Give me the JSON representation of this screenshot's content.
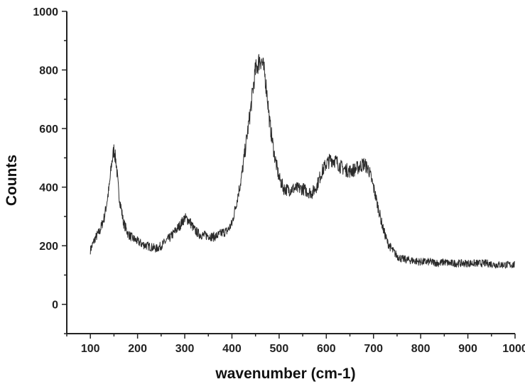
{
  "chart_data": {
    "type": "line",
    "title": "",
    "xlabel": "wavenumber (cm-1)",
    "ylabel": "Counts",
    "xlim": [
      50,
      1000
    ],
    "ylim": [
      -100,
      1000
    ],
    "xticks": [
      100,
      200,
      300,
      400,
      500,
      600,
      700,
      800,
      900,
      1000
    ],
    "yticks": [
      0,
      200,
      400,
      600,
      800,
      1000
    ],
    "grid": false,
    "legend": "none",
    "line_color": "#2a2a2a",
    "series": [
      {
        "x": [
          100,
          110,
          120,
          130,
          140,
          145,
          150,
          155,
          160,
          170,
          180,
          190,
          200,
          210,
          220,
          230,
          240,
          250,
          260,
          270,
          280,
          290,
          300,
          310,
          320,
          330,
          340,
          350,
          360,
          370,
          380,
          390,
          400,
          410,
          420,
          430,
          440,
          445,
          450,
          455,
          460,
          465,
          470,
          475,
          480,
          490,
          500,
          510,
          520,
          530,
          540,
          550,
          560,
          570,
          580,
          590,
          600,
          610,
          620,
          630,
          640,
          650,
          660,
          670,
          680,
          690,
          700,
          710,
          720,
          730,
          740,
          750,
          760,
          780,
          800,
          820,
          840,
          850,
          860,
          880,
          900,
          920,
          940,
          960,
          980,
          1000
        ],
        "y": [
          185,
          225,
          250,
          300,
          400,
          480,
          530,
          480,
          380,
          280,
          240,
          225,
          215,
          205,
          200,
          195,
          190,
          200,
          215,
          230,
          250,
          270,
          295,
          285,
          255,
          240,
          235,
          235,
          230,
          235,
          245,
          250,
          275,
          350,
          430,
          550,
          670,
          740,
          800,
          820,
          840,
          820,
          780,
          710,
          620,
          510,
          430,
          395,
          390,
          395,
          395,
          395,
          385,
          380,
          405,
          450,
          480,
          495,
          490,
          470,
          460,
          455,
          460,
          470,
          480,
          460,
          400,
          330,
          260,
          210,
          185,
          165,
          155,
          150,
          145,
          145,
          140,
          145,
          140,
          140,
          140,
          140,
          140,
          135,
          135,
          135
        ]
      }
    ]
  }
}
